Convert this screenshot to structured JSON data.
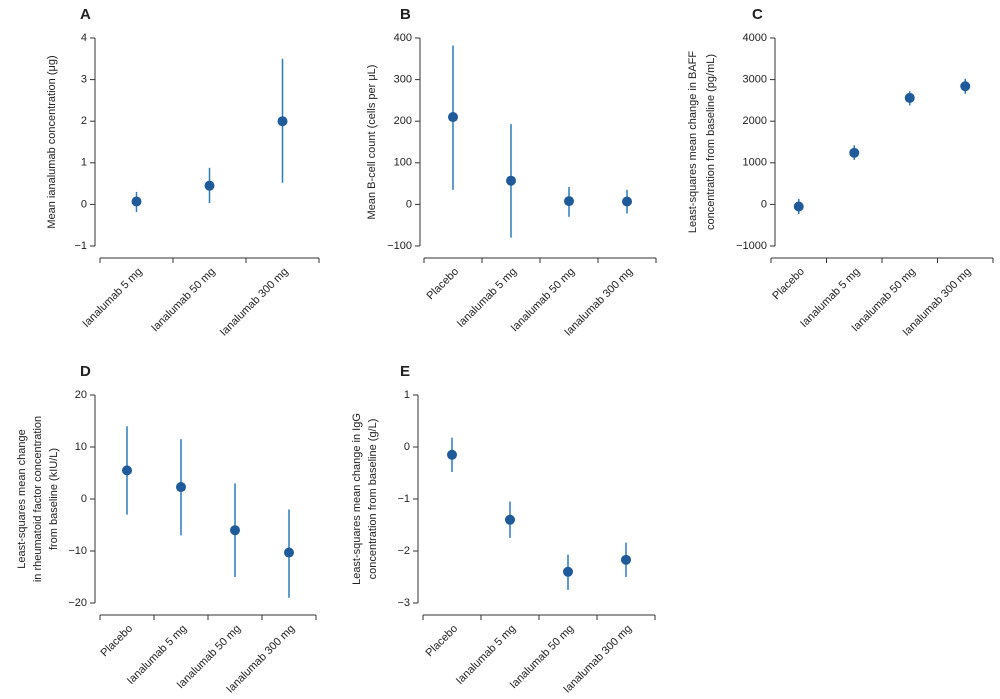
{
  "chart_data": [
    {
      "type": "errorbar",
      "title": "A",
      "y_label": [
        "Mean ianalumab concentration (μg)"
      ],
      "categories": [
        "Ianalumab 5 mg",
        "Ianalumab 50 mg",
        "Ianalumab 300 mg"
      ],
      "values": [
        0.07,
        0.45,
        2.0
      ],
      "lower": [
        -0.18,
        0.03,
        0.52
      ],
      "upper": [
        0.3,
        0.88,
        3.5
      ],
      "ylim": [
        -1,
        4
      ],
      "yticks": [
        {
          "value": -1,
          "label": "−1"
        },
        0,
        1,
        2,
        3,
        4
      ],
      "color": "#1f5a9a",
      "bar_color": "#2b7bbd"
    },
    {
      "type": "errorbar",
      "title": "B",
      "y_label": [
        "Mean B-cell count (cells per μL)"
      ],
      "categories": [
        "Placebo",
        "Ianalumab 5 mg",
        "Ianalumab 50 mg",
        "Ianalumab 300 mg"
      ],
      "values": [
        210,
        57,
        8,
        7
      ],
      "lower": [
        35,
        -80,
        -30,
        -22
      ],
      "upper": [
        382,
        193,
        42,
        35
      ],
      "ylim": [
        -100,
        400
      ],
      "yticks": [
        {
          "value": -100,
          "label": "−100"
        },
        0,
        100,
        200,
        300,
        400
      ],
      "color": "#1f5a9a",
      "bar_color": "#2b7bbd"
    },
    {
      "type": "errorbar",
      "title": "C",
      "y_label": [
        "Least-squares mean change in BAFF",
        "concentration from baseline (pg/mL)"
      ],
      "categories": [
        "Placebo",
        "Ianalumab 5 mg",
        "Ianalumab 50 mg",
        "Ianalumab 300 mg"
      ],
      "values": [
        -50,
        1240,
        2560,
        2840
      ],
      "lower": [
        -230,
        1070,
        2380,
        2660
      ],
      "upper": [
        130,
        1420,
        2720,
        3020
      ],
      "ylim": [
        -1000,
        4000
      ],
      "yticks": [
        {
          "value": -1000,
          "label": "−1000"
        },
        0,
        1000,
        2000,
        3000,
        4000
      ],
      "color": "#1f5a9a",
      "bar_color": "#2b7bbd"
    },
    {
      "type": "errorbar",
      "title": "D",
      "y_label": [
        "Least-squares mean change",
        "in rheumatoid factor concentration",
        "from baseline (kIU/L)"
      ],
      "categories": [
        "Placebo",
        "Ianalumab 5 mg",
        "Ianalumab 50 mg",
        "Ianalumab 300 mg"
      ],
      "values": [
        5.5,
        2.3,
        -6,
        -10.3
      ],
      "lower": [
        -3,
        -7,
        -15,
        -19
      ],
      "upper": [
        14,
        11.5,
        3,
        -2
      ],
      "ylim": [
        -20,
        20
      ],
      "yticks": [
        {
          "value": -20,
          "label": "−20"
        },
        {
          "value": -10,
          "label": "−10"
        },
        0,
        10,
        20
      ],
      "color": "#1f5a9a",
      "bar_color": "#2b7bbd"
    },
    {
      "type": "errorbar",
      "title": "E",
      "y_label": [
        "Least-squares mean change in IgG",
        "concentration from baseline (g/L)"
      ],
      "categories": [
        "Placebo",
        "Ianalumab 5 mg",
        "Ianalumab 50 mg",
        "Ianalumab 300 mg"
      ],
      "values": [
        -0.15,
        -1.4,
        -2.4,
        -2.17
      ],
      "lower": [
        -0.48,
        -1.75,
        -2.75,
        -2.5
      ],
      "upper": [
        0.18,
        -1.05,
        -2.07,
        -1.84
      ],
      "ylim": [
        -3,
        1
      ],
      "yticks": [
        {
          "value": -3,
          "label": "−3"
        },
        {
          "value": -2,
          "label": "−2"
        },
        {
          "value": -1,
          "label": "−1"
        },
        0,
        1
      ],
      "color": "#1f5a9a",
      "bar_color": "#2b7bbd"
    }
  ]
}
